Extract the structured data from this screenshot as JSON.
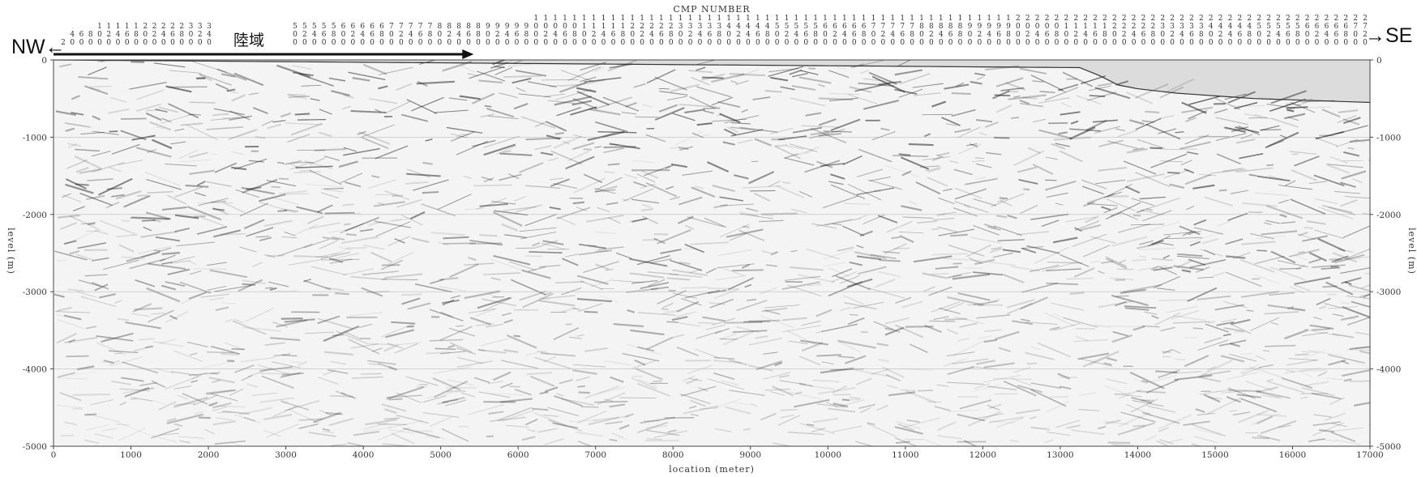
{
  "chart_data": {
    "type": "heatmap",
    "title": "CMP NUMBER",
    "xlabel": "location (meter)",
    "ylabel": "level (m)",
    "xlim": [
      0,
      17000
    ],
    "ylim": [
      -5000,
      0
    ],
    "x_ticks": [
      0,
      1000,
      2000,
      3000,
      4000,
      5000,
      6000,
      7000,
      8000,
      9000,
      10000,
      11000,
      12000,
      13000,
      14000,
      15000,
      16000,
      17000
    ],
    "y_ticks": [
      0,
      -1000,
      -2000,
      -3000,
      -4000,
      -5000
    ],
    "cmp_numbers": {
      "segment_a": [
        "2",
        "40",
        "60",
        "80",
        "100",
        "120",
        "140",
        "160",
        "180",
        "200",
        "220",
        "240",
        "260",
        "280",
        "300",
        "320",
        "340"
      ],
      "segment_b": [
        "500",
        "520",
        "540",
        "560",
        "580",
        "600",
        "620",
        "640",
        "660",
        "680",
        "700",
        "720",
        "740",
        "760",
        "780",
        "800",
        "820",
        "840",
        "860",
        "880",
        "900",
        "920",
        "940",
        "960",
        "980",
        "1000",
        "1020",
        "1040",
        "1060",
        "1080",
        "1100",
        "1120",
        "1140",
        "1160",
        "1180",
        "1200",
        "1220",
        "1240",
        "1260",
        "1280",
        "1300",
        "1320",
        "1340",
        "1360",
        "1380",
        "1400",
        "1420",
        "1440",
        "1460",
        "1480",
        "1500",
        "1520",
        "1540",
        "1560",
        "1580",
        "1600",
        "1620",
        "1640",
        "1660",
        "1680",
        "1700",
        "1720",
        "1740",
        "1760",
        "1780",
        "1800",
        "1820",
        "1840",
        "1860",
        "1880",
        "1900",
        "1920",
        "1940",
        "1960",
        "1980",
        "2000",
        "2020",
        "2040",
        "2060",
        "2080",
        "2100",
        "2120",
        "2140",
        "2160",
        "2180",
        "2200",
        "2220",
        "2240",
        "2260",
        "2280",
        "2300",
        "2320",
        "2340",
        "2360",
        "2380",
        "2400",
        "2420",
        "2440",
        "2460",
        "2480",
        "2500",
        "2520",
        "2540",
        "2560",
        "2580",
        "2600",
        "2620",
        "2640",
        "2660",
        "2680",
        "2700",
        "2720"
      ]
    },
    "annotations": {
      "left_direction": "NW←",
      "right_direction": "→SE",
      "land_label": "陸域",
      "land_extent_m": [
        0,
        5300
      ]
    },
    "seafloor_profile": [
      [
        0,
        0
      ],
      [
        13300,
        -100
      ],
      [
        13800,
        -350
      ],
      [
        14500,
        -430
      ],
      [
        15500,
        -500
      ],
      [
        17000,
        -550
      ]
    ]
  },
  "colors": {
    "background": "#ffffff",
    "axis": "#444444",
    "water": "#dcdcdc",
    "trace": "#1a1a1a",
    "arrow": "#111111"
  }
}
